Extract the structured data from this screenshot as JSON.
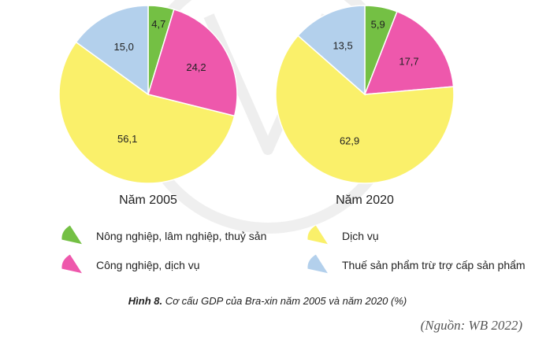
{
  "chart_data": [
    {
      "type": "pie",
      "title": "Năm 2005",
      "slices": [
        {
          "label": "Nông nghiệp, lâm nghiệp, thuỷ sản",
          "value": 4.7,
          "text": "4,7"
        },
        {
          "label": "Công nghiệp, dịch vụ",
          "value": 24.2,
          "text": "24,2"
        },
        {
          "label": "Dịch vụ",
          "value": 56.1,
          "text": "56,1"
        },
        {
          "label": "Thuế sản phẩm trừ trợ cấp sản phẩm",
          "value": 15.0,
          "text": "15,0"
        }
      ]
    },
    {
      "type": "pie",
      "title": "Năm 2020",
      "slices": [
        {
          "label": "Nông nghiệp, lâm nghiệp, thuỷ sản",
          "value": 5.9,
          "text": "5,9"
        },
        {
          "label": "Công nghiệp, dịch vụ",
          "value": 17.7,
          "text": "17,7"
        },
        {
          "label": "Dịch vụ",
          "value": 62.9,
          "text": "62,9"
        },
        {
          "label": "Thuế sản phẩm trừ trợ cấp sản phẩm",
          "value": 13.5,
          "text": "13,5"
        }
      ]
    }
  ],
  "colors": [
    "#74c044",
    "#ee58ac",
    "#faf06a",
    "#b3d0ec"
  ],
  "legend": [
    {
      "label": "Nông nghiệp, lâm nghiệp, thuỷ sản",
      "color": "#74c044"
    },
    {
      "label": "Dịch vụ",
      "color": "#faf06a"
    },
    {
      "label": "Công nghiệp, dịch vụ",
      "color": "#ee58ac"
    },
    {
      "label": "Thuế sản phẩm trừ trợ cấp sản phẩm",
      "color": "#b3d0ec"
    }
  ],
  "caption": {
    "figure_no": "Hình 8.",
    "text": "Cơ cấu GDP của Bra-xin năm 2005 và năm 2020 (%)"
  },
  "source": "(Nguồn: WB 2022)"
}
